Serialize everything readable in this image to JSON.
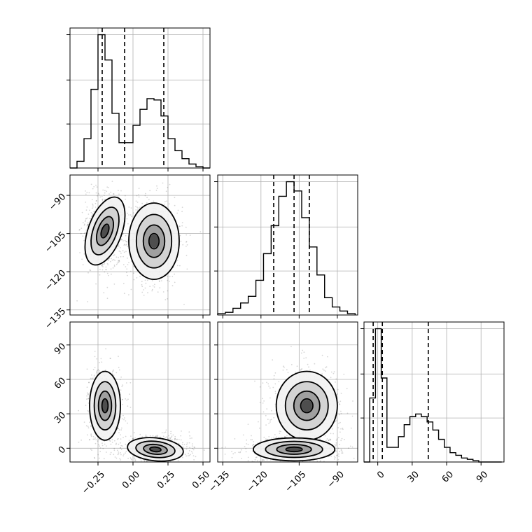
{
  "chart_data": {
    "type": "corner",
    "parameters": [
      {
        "range": [
          -0.45,
          0.55
        ],
        "ticks": [
          -0.25,
          0.0,
          0.25,
          0.5
        ],
        "tick_labels": [
          "−0.25",
          "0.00",
          "0.25",
          "0.50"
        ],
        "quantiles": [
          -0.22,
          -0.06,
          0.22
        ],
        "histogram": {
          "edges": [
            -0.45,
            -0.4,
            -0.35,
            -0.3,
            -0.25,
            -0.2,
            -0.15,
            -0.1,
            -0.05,
            0.0,
            0.05,
            0.1,
            0.15,
            0.2,
            0.25,
            0.3,
            0.35,
            0.4,
            0.45,
            0.5,
            0.55
          ],
          "counts": [
            0,
            0.05,
            0.22,
            0.59,
            1.0,
            0.81,
            0.41,
            0.19,
            0.19,
            0.32,
            0.44,
            0.52,
            0.51,
            0.39,
            0.22,
            0.13,
            0.07,
            0.03,
            0.01,
            0
          ]
        }
      },
      {
        "range": [
          -137,
          -82
        ],
        "ticks": [
          -135,
          -120,
          -105,
          -90
        ],
        "tick_labels": [
          "−135",
          "−120",
          "−105",
          "−90"
        ],
        "quantiles": [
          -115,
          -107,
          -101
        ],
        "histogram": {
          "edges": [
            -137,
            -134,
            -131,
            -128,
            -125,
            -122,
            -119,
            -116,
            -113,
            -110,
            -107,
            -104,
            -101,
            -98,
            -95,
            -92,
            -89,
            -86,
            -83
          ],
          "counts": [
            0.01,
            0.02,
            0.05,
            0.09,
            0.14,
            0.26,
            0.46,
            0.67,
            0.89,
            1.0,
            0.93,
            0.73,
            0.51,
            0.3,
            0.13,
            0.06,
            0.03,
            0.01
          ]
        }
      },
      {
        "range": [
          -12,
          110
        ],
        "ticks": [
          0,
          30,
          60,
          90
        ],
        "tick_labels": [
          "0",
          "30",
          "60",
          "90"
        ],
        "quantiles": [
          -4,
          4,
          44
        ],
        "histogram": {
          "edges": [
            -12,
            -7,
            -2,
            3,
            8,
            13,
            18,
            23,
            28,
            33,
            38,
            43,
            48,
            53,
            58,
            63,
            68,
            73,
            78,
            83,
            88,
            93,
            98,
            103,
            108
          ],
          "counts": [
            0.0,
            0.48,
            1.0,
            0.63,
            0.11,
            0.11,
            0.19,
            0.28,
            0.34,
            0.36,
            0.34,
            0.3,
            0.24,
            0.17,
            0.11,
            0.07,
            0.05,
            0.03,
            0.02,
            0.01,
            0.0,
            0.0,
            0.0,
            0.0
          ]
        }
      }
    ],
    "pairs": [
      {
        "x_param": 0,
        "y_param": 1,
        "modes": [
          {
            "center": [
              -0.2,
              -104
            ],
            "sx": 0.06,
            "sy": 7,
            "rot": -0.35,
            "weight": 0.5
          },
          {
            "center": [
              0.15,
              -108
            ],
            "sx": 0.09,
            "sy": 7.5,
            "rot": 0.0,
            "weight": 0.5
          }
        ]
      },
      {
        "x_param": 0,
        "y_param": 2,
        "modes": [
          {
            "center": [
              -0.2,
              37
            ],
            "sx": 0.055,
            "sy": 15,
            "rot": 0.0,
            "weight": 0.45
          },
          {
            "center": [
              0.16,
              -1
            ],
            "sx": 0.1,
            "sy": 5,
            "rot": -0.1,
            "weight": 0.55
          }
        ]
      },
      {
        "x_param": 1,
        "y_param": 2,
        "modes": [
          {
            "center": [
              -102,
              37
            ],
            "sx": 6,
            "sy": 15,
            "rot": 0.0,
            "weight": 0.45
          },
          {
            "center": [
              -107,
              -1
            ],
            "sx": 8,
            "sy": 5,
            "rot": 0.0,
            "weight": 0.55
          }
        ]
      }
    ],
    "hist_y_gridlines": [
      0.33,
      0.66,
      1.0
    ],
    "grid": true
  }
}
